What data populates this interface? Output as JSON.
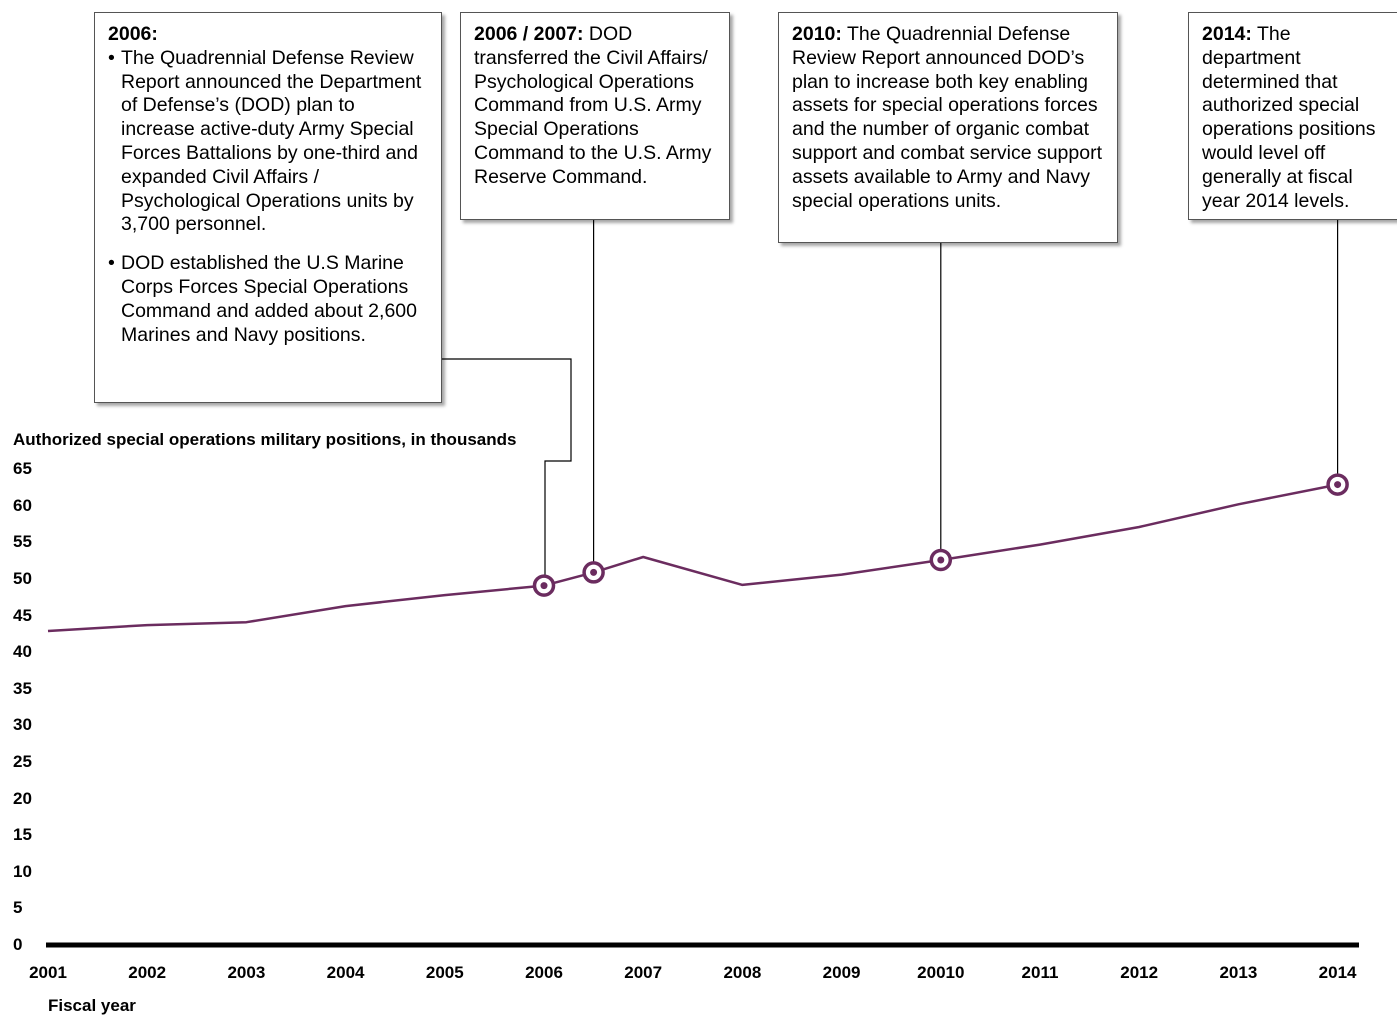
{
  "chart_data": {
    "type": "line",
    "title": "",
    "ylabel": "Authorized special operations military positions, in thousands",
    "xlabel": "Fiscal year",
    "ylim": [
      0,
      65
    ],
    "y_ticks": [
      "65",
      "60",
      "55",
      "50",
      "45",
      "40",
      "35",
      "30",
      "25",
      "20",
      "15",
      "10",
      "5",
      "0"
    ],
    "x_ticks": [
      "2001",
      "2002",
      "2003",
      "2004",
      "2005",
      "2006",
      "2007",
      "2008",
      "2009",
      "20010",
      "2011",
      "2012",
      "2013",
      "2014"
    ],
    "series": [
      {
        "color": "#6b2c5f",
        "points": [
          {
            "x": 2001,
            "y": 42.9
          },
          {
            "x": 2002,
            "y": 43.7
          },
          {
            "x": 2003,
            "y": 44.1
          },
          {
            "x": 2004,
            "y": 46.3
          },
          {
            "x": 2005,
            "y": 47.8
          },
          {
            "x": 2006,
            "y": 49.1
          },
          {
            "x": 2006.5,
            "y": 50.9
          },
          {
            "x": 2007,
            "y": 53.0
          },
          {
            "x": 2008,
            "y": 49.2
          },
          {
            "x": 2009,
            "y": 50.6
          },
          {
            "x": 2010,
            "y": 52.6
          },
          {
            "x": 2011,
            "y": 54.7
          },
          {
            "x": 2012,
            "y": 57.1
          },
          {
            "x": 2013,
            "y": 60.2
          },
          {
            "x": 2014,
            "y": 62.9
          }
        ]
      }
    ],
    "markers": [
      {
        "x": 2006,
        "y": 49.1
      },
      {
        "x": 2006.5,
        "y": 50.9
      },
      {
        "x": 2010,
        "y": 52.6
      },
      {
        "x": 2014,
        "y": 62.9
      }
    ],
    "line_color": "#6b2c5f",
    "axis_color": "#000000"
  },
  "annotations": {
    "a2006": {
      "head": "2006:",
      "bullets": [
        "The Quadrennial Defense Review Report announced the Department of Defense’s (DOD) plan to increase active-duty Army Special Forces Battalions by one-third and expanded Civil Affairs / Psychological Operations units by 3,700 personnel.",
        "DOD established the U.S Marine Corps Forces Special Operations Command and added about 2,600 Marines and Navy positions."
      ]
    },
    "a2007": {
      "head": "2006 / 2007:",
      "text": " DOD transferred the Civil Affairs/ Psychological Operations Command from U.S. Army Special Operations Command to the U.S. Army Reserve Command."
    },
    "a2010": {
      "head": "2010:",
      "text": " The Quadrennial Defense Review Report announced DOD’s plan to increase both key enabling assets for special operations forces and the number of organic combat support and combat service support assets available to Army and Navy special operations units."
    },
    "a2014": {
      "head": "2014:",
      "text": " The department determined that authorized special operations positions would level off generally at fiscal year 2014 levels."
    }
  }
}
